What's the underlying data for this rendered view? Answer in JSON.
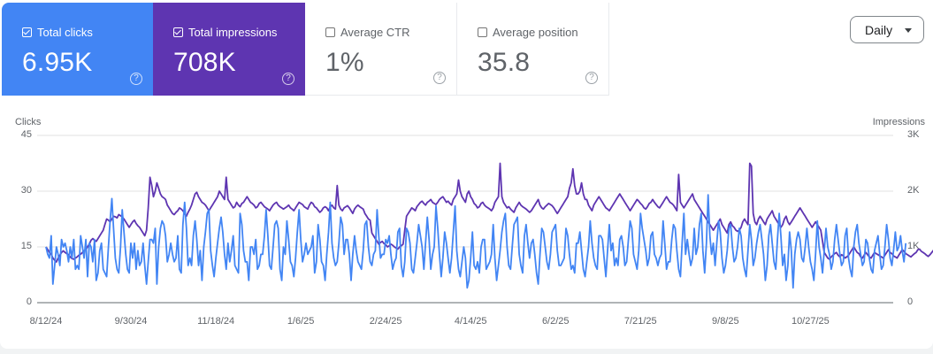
{
  "metrics": [
    {
      "label": "Total clicks",
      "value": "6.95K",
      "checked": true,
      "color": "#4285f4"
    },
    {
      "label": "Total impressions",
      "value": "708K",
      "checked": true,
      "color": "#5e35b1"
    },
    {
      "label": "Average CTR",
      "value": "1%",
      "checked": false
    },
    {
      "label": "Average position",
      "value": "35.8",
      "checked": false
    }
  ],
  "help_icon_glyph": "?",
  "granularity": {
    "selected": "Daily"
  },
  "chart_data": {
    "type": "line",
    "start_date": "8/12/24",
    "interval": "daily",
    "left_axis": {
      "title": "Clicks",
      "ticks": [
        "0",
        "15",
        "30",
        "45"
      ],
      "range": [
        0,
        45
      ]
    },
    "right_axis": {
      "title": "Impressions",
      "ticks": [
        "0",
        "1K",
        "2K",
        "3K"
      ],
      "range": [
        0,
        3000
      ]
    },
    "x_ticks": [
      "8/12/24",
      "9/30/24",
      "11/18/24",
      "1/6/25",
      "2/24/25",
      "4/14/25",
      "6/2/25",
      "7/21/25",
      "9/8/25",
      "10/27/25"
    ],
    "grid": true,
    "series": [
      {
        "name": "Clicks",
        "axis": "left",
        "color": "#4285f4",
        "values": [
          15,
          13,
          12,
          18,
          5,
          10,
          15,
          13,
          10,
          17,
          15,
          16,
          14,
          11,
          15,
          12,
          17,
          9,
          10,
          9,
          18,
          15,
          12,
          17,
          7,
          16,
          15,
          11,
          17,
          6,
          8,
          14,
          16,
          9,
          8,
          7,
          15,
          22,
          28,
          20,
          12,
          9,
          8,
          15,
          25,
          19,
          13,
          9,
          8,
          16,
          12,
          16,
          9,
          14,
          10,
          11,
          16,
          10,
          5,
          11,
          17,
          17,
          16,
          20,
          5,
          15,
          20,
          22,
          21,
          18,
          11,
          13,
          16,
          13,
          11,
          12,
          18,
          9,
          8,
          21,
          27,
          20,
          10,
          12,
          10,
          18,
          22,
          17,
          10,
          14,
          6,
          15,
          19,
          24,
          25,
          14,
          10,
          7,
          12,
          16,
          20,
          23,
          19,
          13,
          9,
          16,
          11,
          14,
          18,
          10,
          9,
          8,
          24,
          21,
          14,
          11,
          11,
          6,
          15,
          15,
          13,
          17,
          9,
          10,
          13,
          13,
          18,
          25,
          18,
          10,
          9,
          15,
          21,
          22,
          20,
          9,
          6,
          15,
          13,
          22,
          17,
          11,
          10,
          7,
          12,
          19,
          25,
          17,
          11,
          13,
          16,
          13,
          14,
          15,
          18,
          8,
          11,
          21,
          17,
          11,
          10,
          6,
          13,
          19,
          27,
          16,
          12,
          10,
          11,
          16,
          23,
          21,
          13,
          17,
          17,
          13,
          6,
          13,
          18,
          14,
          11,
          10,
          9,
          14,
          21,
          22,
          15,
          11,
          10,
          13,
          14,
          25,
          18,
          12,
          13,
          13,
          17,
          16,
          18,
          13,
          9,
          11,
          12,
          19,
          20,
          10,
          7,
          11,
          20,
          19,
          16,
          9,
          8,
          12,
          16,
          21,
          18,
          15,
          9,
          16,
          23,
          17,
          9,
          13,
          15,
          26,
          20,
          13,
          7,
          12,
          19,
          16,
          12,
          8,
          12,
          19,
          26,
          14,
          9,
          7,
          11,
          15,
          12,
          4,
          6,
          12,
          19,
          10,
          9,
          11,
          8,
          15,
          17,
          17,
          9,
          10,
          11,
          13,
          21,
          12,
          6,
          10,
          14,
          19,
          22,
          24,
          15,
          10,
          9,
          15,
          21,
          22,
          23,
          13,
          10,
          8,
          18,
          21,
          16,
          12,
          16,
          17,
          13,
          8,
          5,
          13,
          20,
          19,
          15,
          11,
          9,
          13,
          19,
          20,
          21,
          14,
          10,
          10,
          11,
          12,
          20,
          18,
          13,
          9,
          10,
          8,
          16,
          16,
          19,
          14,
          9,
          7,
          11,
          15,
          22,
          16,
          12,
          10,
          9,
          18,
          18,
          17,
          12,
          7,
          14,
          21,
          14,
          16,
          10,
          12,
          10,
          17,
          18,
          15,
          10,
          11,
          17,
          22,
          20,
          13,
          11,
          9,
          14,
          24,
          20,
          17,
          14,
          10,
          12,
          18,
          19,
          13,
          12,
          10,
          12,
          13,
          22,
          16,
          9,
          11,
          11,
          17,
          21,
          20,
          14,
          9,
          7,
          16,
          24,
          13,
          17,
          13,
          10,
          12,
          20,
          13,
          15,
          21,
          24,
          14,
          8,
          16,
          29,
          18,
          13,
          16,
          10,
          16,
          22,
          19,
          12,
          8,
          10,
          14,
          20,
          21,
          15,
          11,
          12,
          15,
          20,
          18,
          12,
          9,
          7,
          14,
          21,
          17,
          10,
          12,
          16,
          19,
          21,
          17,
          13,
          6,
          10,
          18,
          21,
          16,
          11,
          9,
          17,
          24,
          18,
          10,
          13,
          6,
          10,
          19,
          14,
          4,
          13,
          17,
          19,
          17,
          12,
          11,
          15,
          20,
          15,
          11,
          9,
          6,
          13,
          22,
          15,
          12,
          8,
          14,
          20,
          15,
          13,
          9,
          11,
          17,
          21,
          17,
          13,
          10,
          11,
          18,
          20,
          12,
          9,
          7,
          15,
          19,
          21,
          16,
          13,
          10,
          11,
          17,
          16,
          12,
          9,
          8,
          14,
          16,
          18,
          13,
          9,
          10,
          15,
          21,
          17,
          12,
          10,
          14,
          19,
          14,
          15,
          18,
          14,
          11,
          16
        ]
      },
      {
        "name": "Impressions",
        "axis": "right",
        "color": "#5e35b1",
        "values": [
          1000,
          950,
          900,
          870,
          800,
          760,
          730,
          800,
          850,
          900,
          930,
          900,
          880,
          860,
          820,
          790,
          780,
          800,
          820,
          850,
          870,
          900,
          930,
          950,
          1000,
          1050,
          1120,
          1150,
          1120,
          1100,
          1150,
          1200,
          1250,
          1300,
          1400,
          1500,
          1480,
          1450,
          1500,
          1550,
          1540,
          1520,
          1580,
          1560,
          1540,
          1500,
          1450,
          1400,
          1350,
          1400,
          1450,
          1480,
          1420,
          1380,
          1350,
          1300,
          1250,
          1200,
          1300,
          1700,
          2250,
          2100,
          1900,
          2000,
          2150,
          2050,
          1950,
          1900,
          1880,
          1850,
          1750,
          1700,
          1650,
          1600,
          1580,
          1620,
          1650,
          1700,
          1680,
          1650,
          1600,
          1550,
          1620,
          1680,
          1750,
          1850,
          1950,
          1980,
          1900,
          1850,
          1800,
          1780,
          1750,
          1700,
          1650,
          1700,
          1750,
          1800,
          1850,
          1900,
          2000,
          1950,
          1900,
          1850,
          2250,
          1850,
          1800,
          1750,
          1700,
          1720,
          1800,
          1750,
          1720,
          1780,
          1800,
          1850,
          1900,
          1850,
          1800,
          1780,
          1750,
          1700,
          1720,
          1780,
          1800,
          1760,
          1720,
          1700,
          1680,
          1650,
          1700,
          1750,
          1780,
          1800,
          1750,
          1720,
          1700,
          1680,
          1700,
          1720,
          1750,
          1700,
          1680,
          1650,
          1700,
          1750,
          1800,
          1780,
          1760,
          1720,
          1700,
          1680,
          1750,
          1800,
          1780,
          1720,
          1700,
          1660,
          1620,
          1650,
          1700,
          1720,
          1700,
          1650,
          1720,
          1750,
          1700,
          1680,
          2100,
          1750,
          1680,
          1650,
          1700,
          1720,
          1740,
          1700,
          1650,
          1600,
          1680,
          1720,
          1750,
          1720,
          1700,
          1680,
          1600,
          1550,
          1500,
          1480,
          1250,
          1200,
          1150,
          1100,
          1050,
          1080,
          1100,
          1060,
          1040,
          1000,
          1020,
          1050,
          1030,
          1000,
          980,
          960,
          1000,
          1020,
          1050,
          1300,
          1550,
          1600,
          1650,
          1700,
          1680,
          1650,
          1720,
          1760,
          1800,
          1820,
          1780,
          1750,
          1800,
          1820,
          1850,
          1800,
          1780,
          1760,
          1800,
          1850,
          1880,
          1900,
          1850,
          1800,
          1820,
          1780,
          1750,
          1850,
          1900,
          1950,
          2200,
          2000,
          1900,
          1850,
          1800,
          1950,
          2000,
          1900,
          1850,
          1780,
          1750,
          1700,
          1720,
          1780,
          1800,
          1750,
          1720,
          1700,
          1680,
          1650,
          1700,
          1800,
          1850,
          1900,
          2500,
          1900,
          1800,
          1750,
          1700,
          1720,
          1680,
          1650,
          1620,
          1700,
          1750,
          1800,
          1750,
          1720,
          1700,
          1680,
          1650,
          1620,
          1650,
          1700,
          1750,
          1800,
          1850,
          1750,
          1700,
          1680,
          1720,
          1750,
          1780,
          1760,
          1740,
          1700,
          1650,
          1600,
          1650,
          1700,
          1750,
          1800,
          1850,
          1900,
          2050,
          2150,
          2400,
          2100,
          1950,
          1950,
          2000,
          2150,
          1950,
          1850,
          1850,
          1750,
          1700,
          1650,
          1750,
          1800,
          1850,
          1900,
          1850,
          1800,
          1750,
          1700,
          1680,
          1650,
          1700,
          1750,
          1800,
          1850,
          1900,
          1950,
          1900,
          1850,
          1800,
          1750,
          1700,
          1650,
          1700,
          1750,
          1800,
          1850,
          1820,
          1780,
          1750,
          1700,
          1680,
          1720,
          1780,
          1800,
          1850,
          1800,
          1760,
          1720,
          1700,
          1750,
          1800,
          1850,
          1900,
          1850,
          1800,
          1780,
          1750,
          1700,
          1650,
          2300,
          1800,
          1750,
          1700,
          1750,
          1800,
          1850,
          1900,
          1950,
          1850,
          1800,
          1750,
          1700,
          1650,
          1600,
          1550,
          1500,
          1450,
          1400,
          1350,
          1300,
          1350,
          1400,
          1450,
          1500,
          1400,
          1350,
          1300,
          1250,
          1400,
          1450,
          1380,
          1350,
          1300,
          1280,
          1300,
          1350,
          1450,
          1500,
          1450,
          1400,
          2500,
          2450,
          1600,
          1450,
          1400,
          1500,
          1550,
          1500,
          1450,
          1400,
          1500,
          1550,
          1600,
          1650,
          1550,
          1500,
          1450,
          1400,
          1350,
          1400,
          1500,
          1550,
          1450,
          1400,
          1450,
          1500,
          1550,
          1600,
          1650,
          1700,
          1650,
          1600,
          1550,
          1500,
          1450,
          1400,
          1350,
          1400,
          1450,
          1400,
          1350,
          1300,
          1100,
          900,
          850,
          800,
          780,
          820,
          850,
          880,
          900,
          850,
          820,
          860,
          840,
          800,
          820,
          850,
          900,
          950,
          1000,
          950,
          900,
          880,
          820,
          800,
          850,
          900,
          860,
          820,
          800,
          850,
          900,
          880,
          860,
          840,
          820,
          800,
          850,
          900,
          950,
          900,
          880,
          840,
          820,
          800,
          850,
          900,
          950,
          920,
          880,
          860,
          840,
          820,
          850,
          880,
          900,
          950,
          960,
          920,
          900,
          880,
          850,
          830,
          860,
          900,
          940,
          960,
          980,
          1000,
          1020,
          980,
          950,
          900,
          880,
          920,
          960,
          1000,
          1020,
          1000,
          960
        ]
      }
    ]
  }
}
